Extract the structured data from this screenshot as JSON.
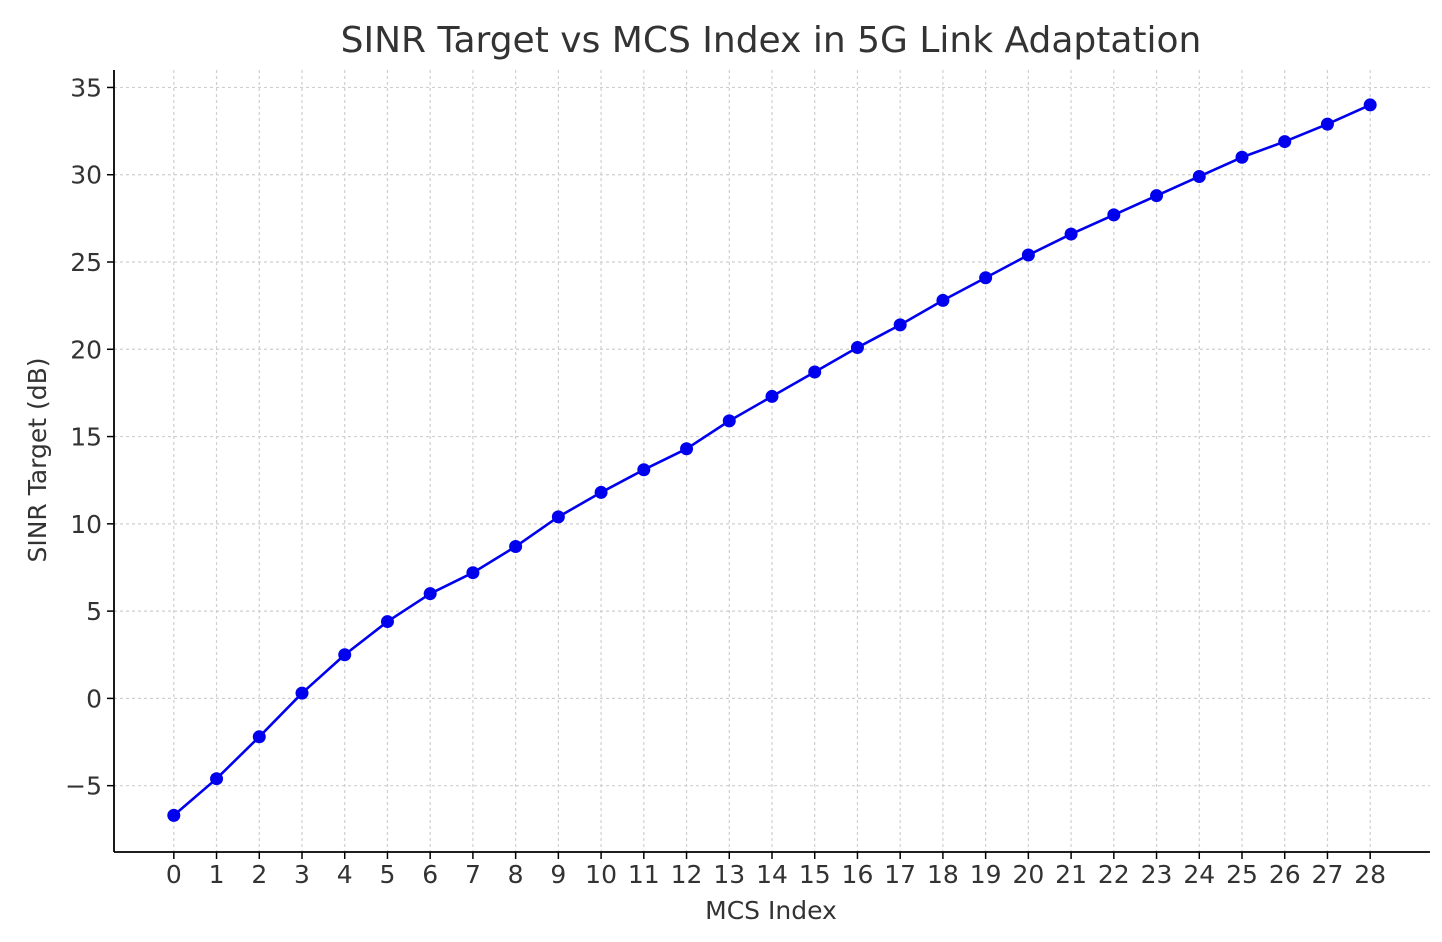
{
  "chart_data": {
    "type": "line",
    "title": "SINR Target vs MCS Index in 5G Link Adaptation",
    "xlabel": "MCS Index",
    "ylabel": "SINR Target (dB)",
    "x": [
      0,
      1,
      2,
      3,
      4,
      5,
      6,
      7,
      8,
      9,
      10,
      11,
      12,
      13,
      14,
      15,
      16,
      17,
      18,
      19,
      20,
      21,
      22,
      23,
      24,
      25,
      26,
      27,
      28
    ],
    "y_ticks": [
      -5,
      0,
      5,
      10,
      15,
      20,
      25,
      30,
      35
    ],
    "y_tick_labels": [
      "−5",
      "0",
      "5",
      "10",
      "15",
      "20",
      "25",
      "30",
      "35"
    ],
    "xlim": [
      -1.4,
      29.4
    ],
    "ylim": [
      -8.8,
      36.0
    ],
    "grid": true,
    "series": [
      {
        "color": "#0000ee",
        "marker": "circle",
        "values": [
          -6.7,
          -4.6,
          -2.2,
          0.3,
          2.5,
          4.4,
          6.0,
          7.2,
          8.7,
          10.4,
          11.8,
          13.1,
          14.3,
          15.9,
          17.3,
          18.7,
          20.1,
          21.4,
          22.8,
          24.1,
          25.4,
          26.6,
          27.7,
          28.8,
          29.9,
          31.0,
          31.9,
          32.9,
          34.0
        ]
      }
    ]
  }
}
